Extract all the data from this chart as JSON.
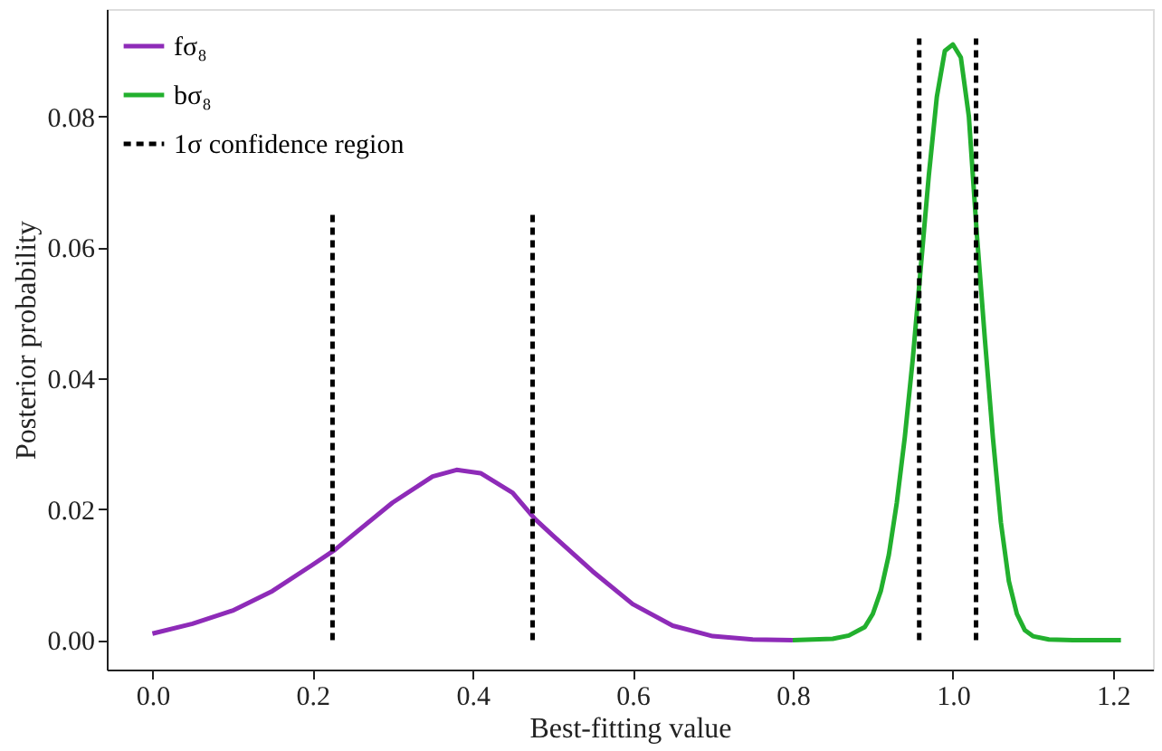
{
  "chart_data": {
    "type": "line",
    "xlabel": "Best-fitting value",
    "ylabel": "Posterior probability",
    "xlim": [
      -0.057,
      1.25
    ],
    "ylim": [
      -0.0045,
      0.0964
    ],
    "xticks": [
      {
        "value": 0,
        "label": "0.0"
      },
      {
        "value": 0.2,
        "label": "0.2"
      },
      {
        "value": 0.4,
        "label": "0.4"
      },
      {
        "value": 0.6,
        "label": "0.6"
      },
      {
        "value": 0.8,
        "label": "0.8"
      },
      {
        "value": 1,
        "label": "1.0"
      },
      {
        "value": 1.2,
        "label": "1.2"
      }
    ],
    "yticks": [
      {
        "value": 0,
        "label": "0.00"
      },
      {
        "value": 0.02,
        "label": "0.02"
      },
      {
        "value": 0.04,
        "label": "0.04"
      },
      {
        "value": 0.06,
        "label": "0.06"
      },
      {
        "value": 0.08,
        "label": "0.08"
      }
    ],
    "grid": false,
    "legend": "top left",
    "series": [
      {
        "name": "fσ₈",
        "color": "#8e2bb8",
        "line_style": "solid",
        "x": [
          0.0,
          0.05,
          0.1,
          0.15,
          0.2,
          0.228,
          0.25,
          0.3,
          0.35,
          0.38,
          0.41,
          0.45,
          0.478,
          0.5,
          0.55,
          0.6,
          0.65,
          0.7,
          0.75,
          0.8
        ],
        "values": [
          0.001,
          0.0025,
          0.0045,
          0.0075,
          0.0115,
          0.0138,
          0.016,
          0.021,
          0.025,
          0.026,
          0.0255,
          0.0225,
          0.0185,
          0.016,
          0.0105,
          0.0055,
          0.0022,
          0.0006,
          0.0001,
          0.0
        ]
      },
      {
        "name": "bσ₈",
        "color": "#22b02e",
        "line_style": "solid",
        "x": [
          0.8,
          0.85,
          0.87,
          0.89,
          0.9,
          0.91,
          0.92,
          0.93,
          0.94,
          0.95,
          0.96,
          0.97,
          0.98,
          0.99,
          1.0,
          1.01,
          1.02,
          1.03,
          1.04,
          1.05,
          1.06,
          1.07,
          1.08,
          1.09,
          1.1,
          1.12,
          1.15,
          1.21
        ],
        "values": [
          0.0,
          0.0002,
          0.0007,
          0.002,
          0.004,
          0.0075,
          0.013,
          0.021,
          0.031,
          0.043,
          0.057,
          0.071,
          0.083,
          0.09,
          0.091,
          0.089,
          0.08,
          0.062,
          0.046,
          0.031,
          0.018,
          0.009,
          0.004,
          0.0015,
          0.0006,
          0.0001,
          0.0,
          0.0
        ]
      },
      {
        "name": "1σ confidence region",
        "color": "#000000",
        "line_style": "dashed",
        "x": [
          0.225,
          0.225,
          null,
          0.475,
          0.475,
          null,
          0.958,
          0.958,
          null,
          1.029,
          1.029
        ],
        "values": [
          0.0,
          0.065,
          null,
          0.0,
          0.065,
          null,
          0.0,
          0.0919,
          null,
          0.0,
          0.0919
        ]
      }
    ]
  }
}
